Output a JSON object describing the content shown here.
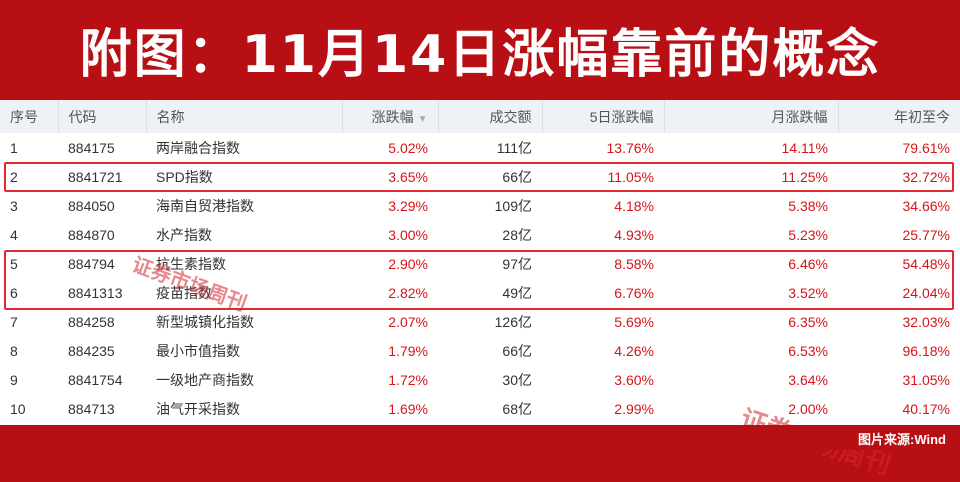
{
  "banner": {
    "title": "附图：11月14日涨幅靠前的概念"
  },
  "table": {
    "headers": {
      "seq": "序号",
      "code": "代码",
      "name": "名称",
      "change": "涨跌幅",
      "volume": "成交额",
      "change5d": "5日涨跌幅",
      "change_month": "月涨跌幅",
      "ytd": "年初至今"
    },
    "sorted_column": "涨跌幅",
    "rows": [
      {
        "seq": "1",
        "code": "884175",
        "name": "两岸融合指数",
        "change": "5.02%",
        "volume": "111亿",
        "change5d": "13.76%",
        "change_month": "14.11%",
        "ytd": "79.61%"
      },
      {
        "seq": "2",
        "code": "8841721",
        "name": "SPD指数",
        "change": "3.65%",
        "volume": "66亿",
        "change5d": "11.05%",
        "change_month": "11.25%",
        "ytd": "32.72%"
      },
      {
        "seq": "3",
        "code": "884050",
        "name": "海南自贸港指数",
        "change": "3.29%",
        "volume": "109亿",
        "change5d": "4.18%",
        "change_month": "5.38%",
        "ytd": "34.66%"
      },
      {
        "seq": "4",
        "code": "884870",
        "name": "水产指数",
        "change": "3.00%",
        "volume": "28亿",
        "change5d": "4.93%",
        "change_month": "5.23%",
        "ytd": "25.77%"
      },
      {
        "seq": "5",
        "code": "884794",
        "name": "抗生素指数",
        "change": "2.90%",
        "volume": "97亿",
        "change5d": "8.58%",
        "change_month": "6.46%",
        "ytd": "54.48%"
      },
      {
        "seq": "6",
        "code": "8841313",
        "name": "疫苗指数",
        "change": "2.82%",
        "volume": "49亿",
        "change5d": "6.76%",
        "change_month": "3.52%",
        "ytd": "24.04%"
      },
      {
        "seq": "7",
        "code": "884258",
        "name": "新型城镇化指数",
        "change": "2.07%",
        "volume": "126亿",
        "change5d": "5.69%",
        "change_month": "6.35%",
        "ytd": "32.03%"
      },
      {
        "seq": "8",
        "code": "884235",
        "name": "最小市值指数",
        "change": "1.79%",
        "volume": "66亿",
        "change5d": "4.26%",
        "change_month": "6.53%",
        "ytd": "96.18%"
      },
      {
        "seq": "9",
        "code": "8841754",
        "name": "一级地产商指数",
        "change": "1.72%",
        "volume": "30亿",
        "change5d": "3.60%",
        "change_month": "3.64%",
        "ytd": "31.05%"
      },
      {
        "seq": "10",
        "code": "884713",
        "name": "油气开采指数",
        "change": "1.69%",
        "volume": "68亿",
        "change5d": "2.99%",
        "change_month": "2.00%",
        "ytd": "40.17%"
      }
    ]
  },
  "watermark": {
    "text": "证券市场周刊"
  },
  "footer": {
    "source": "图片来源:Wind"
  },
  "colors": {
    "banner": "#b80f14",
    "positive": "#d8141a",
    "highlight_border": "#e02a2f"
  }
}
